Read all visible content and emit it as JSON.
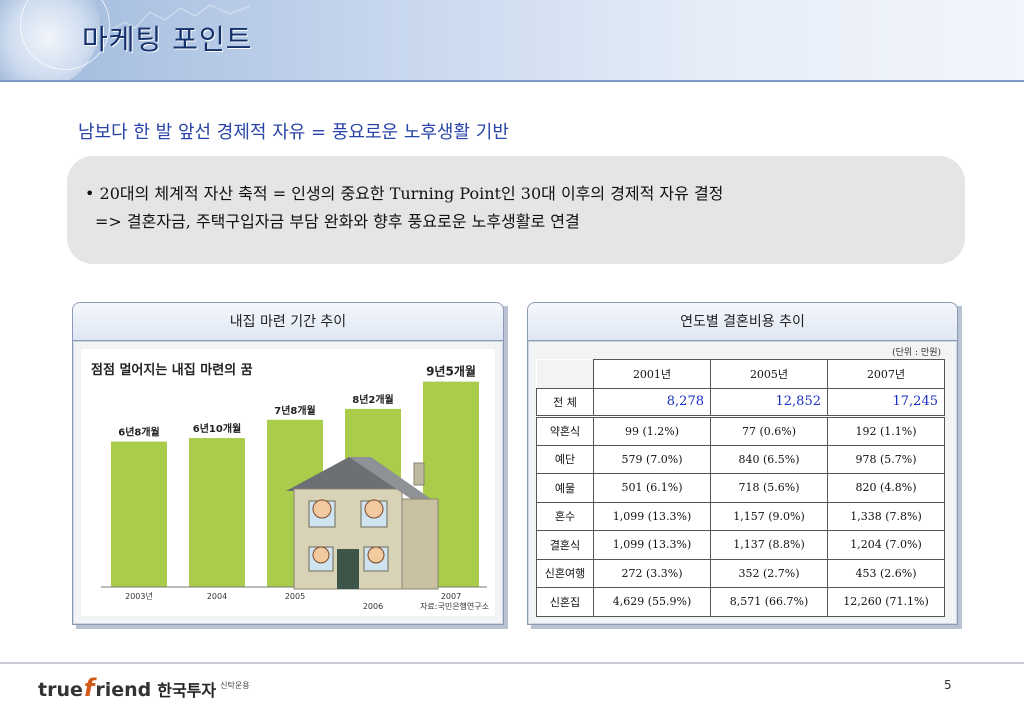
{
  "header": {
    "title": "마케팅 포인트"
  },
  "subtitle": "남보다 한 발 앞선 경제적 자유 = 풍요로운 노후생활 기반",
  "callout": {
    "line1": "• 20대의 체계적 자산 축적 = 인생의 중요한 Turning Point인 30대 이후의 경제적 자유 결정",
    "line2": "=> 결혼자금, 주택구입자금 부담 완화와 향후 풍요로운 노후생활로 연결"
  },
  "left_panel": {
    "title": "내집 마련 기간 추이",
    "source": "자료:국민은행연구소"
  },
  "chart_data": {
    "type": "bar",
    "title": "점점 멀어지는 내집 마련의 꿈",
    "categories": [
      "2003년",
      "2004",
      "2005",
      "2006",
      "2007"
    ],
    "values": [
      6.67,
      6.83,
      7.67,
      8.17,
      9.42
    ],
    "labels": [
      "6년8개월",
      "6년10개월",
      "7년8개월",
      "8년2개월",
      "9년5개월"
    ],
    "color": "#a9cc4a",
    "ylim": [
      0,
      10
    ]
  },
  "right_panel": {
    "title": "연도별 결혼비용 추이",
    "unit": "(단위 : 만원)",
    "years": [
      "2001년",
      "2005년",
      "2007년"
    ],
    "total_label": "전 체",
    "totals": [
      "8,278",
      "12,852",
      "17,245"
    ],
    "rows": [
      {
        "label": "약혼식",
        "values": [
          "99  (1.2%)",
          "77  (0.6%)",
          "192  (1.1%)"
        ]
      },
      {
        "label": "예단",
        "values": [
          "579  (7.0%)",
          "840  (6.5%)",
          "978  (5.7%)"
        ]
      },
      {
        "label": "예물",
        "values": [
          "501  (6.1%)",
          "718  (5.6%)",
          "820  (4.8%)"
        ]
      },
      {
        "label": "혼수",
        "values": [
          "1,099  (13.3%)",
          "1,157  (9.0%)",
          "1,338  (7.8%)"
        ]
      },
      {
        "label": "결혼식",
        "values": [
          "1,099  (13.3%)",
          "1,137  (8.8%)",
          "1,204  (7.0%)"
        ]
      },
      {
        "label": "신혼여행",
        "values": [
          "272  (3.3%)",
          "352  (2.7%)",
          "453  (2.6%)"
        ]
      },
      {
        "label": "신혼집",
        "values": [
          "4,629  (55.9%)",
          "8,571  (66.7%)",
          "12,260  (71.1%)"
        ]
      }
    ]
  },
  "footer": {
    "logo_true": "true",
    "logo_f": "f",
    "logo_riend": "riend",
    "logo_korean": "한국투자",
    "logo_small": "신탁운용",
    "page_number": "5"
  },
  "colors": {
    "title_blue": "#14306b",
    "subtitle_blue": "#2a44a8",
    "bar_green": "#a9cc4a",
    "total_blue": "#1a2fc0"
  }
}
